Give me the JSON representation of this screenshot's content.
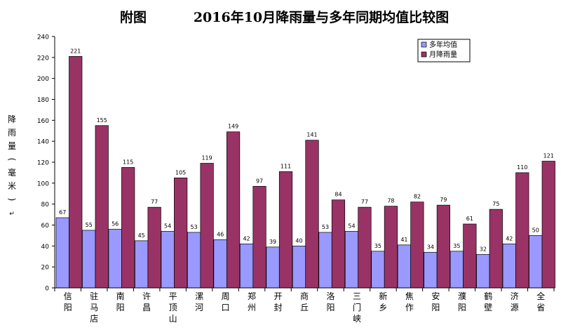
{
  "chart_data": {
    "type": "bar",
    "title_prefix": "附图",
    "title": "2016年10月降雨量与多年同期均值比较图",
    "ylabel": "降雨量(毫米)",
    "ylabel_mark": "↵",
    "ylim": [
      0,
      240
    ],
    "yticks": [
      0,
      20,
      40,
      60,
      80,
      100,
      120,
      140,
      160,
      180,
      200,
      220,
      240
    ],
    "grid": false,
    "legend_position": "top-right",
    "categories": [
      "信阳",
      "驻马店",
      "南阳",
      "许昌",
      "平顶山",
      "漯河",
      "周口",
      "郑州",
      "开封",
      "商丘",
      "洛阳",
      "三门峡",
      "新乡",
      "焦作",
      "安阳",
      "濮阳",
      "鹤壁",
      "济源",
      "全省"
    ],
    "series": [
      {
        "name": "多年均值",
        "color": "#9999ff",
        "values": [
          67,
          55,
          56,
          45,
          54,
          53,
          46,
          42,
          39,
          40,
          53,
          54,
          35,
          41,
          34,
          35,
          32,
          42,
          50
        ]
      },
      {
        "name": "月降雨量",
        "color": "#993366",
        "values": [
          221,
          155,
          115,
          77,
          105,
          119,
          149,
          97,
          111,
          141,
          84,
          77,
          78,
          82,
          79,
          61,
          75,
          110,
          121
        ]
      }
    ]
  }
}
